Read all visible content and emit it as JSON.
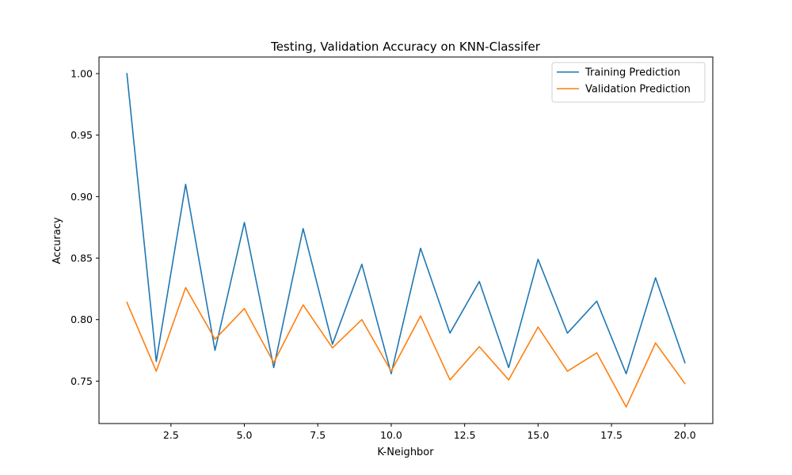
{
  "chart_data": {
    "type": "line",
    "title": "Testing, Validation Accuracy on KNN-Classifer",
    "xlabel": "K-Neighbor",
    "ylabel": "Accuracy",
    "x": [
      1,
      2,
      3,
      4,
      5,
      6,
      7,
      8,
      9,
      10,
      11,
      12,
      13,
      14,
      15,
      16,
      17,
      18,
      19,
      20
    ],
    "xlim": [
      0.05,
      20.95
    ],
    "ylim": [
      0.7155,
      1.0135
    ],
    "x_ticks": [
      2.5,
      5.0,
      7.5,
      10.0,
      12.5,
      15.0,
      17.5,
      20.0
    ],
    "x_tick_labels": [
      "2.5",
      "5.0",
      "7.5",
      "10.0",
      "12.5",
      "15.0",
      "17.5",
      "20.0"
    ],
    "y_ticks": [
      0.75,
      0.8,
      0.85,
      0.9,
      0.95,
      1.0
    ],
    "y_tick_labels": [
      "0.75",
      "0.80",
      "0.85",
      "0.90",
      "0.95",
      "1.00"
    ],
    "grid": false,
    "legend_position": "top-right",
    "series": [
      {
        "name": "Training Prediction",
        "color": "#1f77b4",
        "values": [
          1.0,
          0.766,
          0.91,
          0.775,
          0.879,
          0.761,
          0.874,
          0.78,
          0.845,
          0.756,
          0.858,
          0.789,
          0.831,
          0.761,
          0.849,
          0.789,
          0.815,
          0.756,
          0.834,
          0.765
        ]
      },
      {
        "name": "Validation Prediction",
        "color": "#ff7f0e",
        "values": [
          0.814,
          0.758,
          0.826,
          0.784,
          0.809,
          0.765,
          0.812,
          0.777,
          0.8,
          0.758,
          0.803,
          0.751,
          0.778,
          0.751,
          0.794,
          0.758,
          0.773,
          0.729,
          0.781,
          0.748
        ]
      }
    ]
  }
}
